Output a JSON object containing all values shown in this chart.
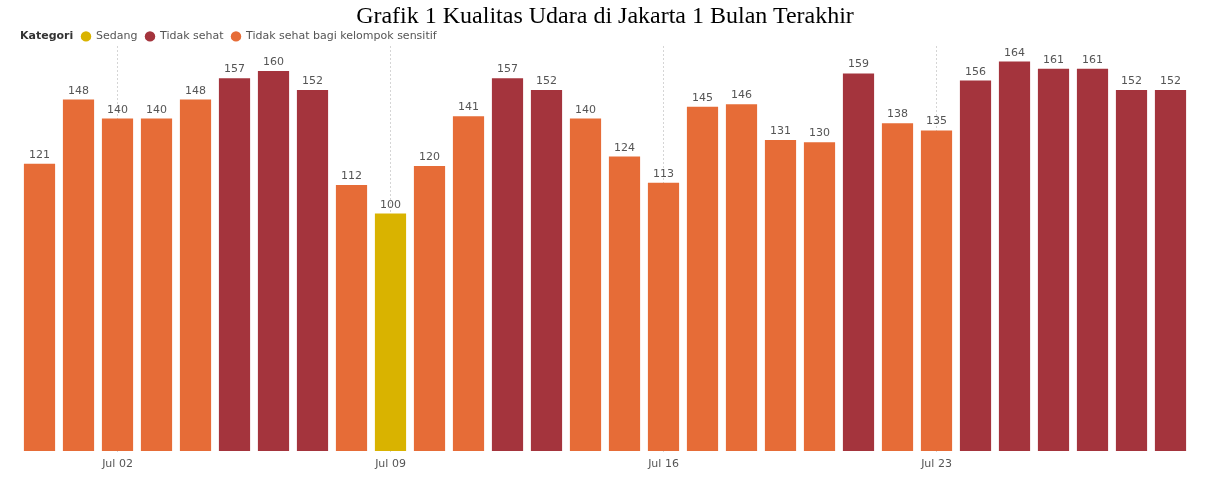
{
  "chart_data": {
    "type": "bar",
    "title": "Grafik 1 Kualitas Udara di Jakarta 1 Bulan Terakhir",
    "legend_title": "Kategori",
    "legend": "top left",
    "grid": "x",
    "data_labels": true,
    "tick_labels": "x",
    "categories": [
      null,
      null,
      "Jul 02",
      null,
      null,
      null,
      null,
      null,
      null,
      "Jul 09",
      null,
      null,
      null,
      null,
      null,
      null,
      "Jul 16",
      null,
      null,
      null,
      null,
      null,
      null,
      "Jul 23",
      null,
      null,
      null,
      null,
      null,
      null
    ],
    "series": [
      {
        "name": "Sedang",
        "color": "#d9b300",
        "values": [
          null,
          null,
          null,
          null,
          null,
          null,
          null,
          null,
          null,
          100,
          null,
          null,
          null,
          null,
          null,
          null,
          null,
          null,
          null,
          null,
          null,
          null,
          null,
          null,
          null,
          null,
          null,
          null,
          null,
          null
        ]
      },
      {
        "name": "Tidak sehat",
        "color": "#a4343d",
        "values": [
          null,
          null,
          null,
          null,
          null,
          157,
          160,
          152,
          null,
          null,
          null,
          null,
          157,
          152,
          null,
          null,
          null,
          null,
          null,
          null,
          null,
          159,
          null,
          null,
          156,
          164,
          161,
          161,
          152,
          152
        ]
      },
      {
        "name": "Tidak sehat bagi kelompok sensitif",
        "color": "#e66c37",
        "values": [
          121,
          148,
          140,
          140,
          148,
          null,
          null,
          null,
          112,
          null,
          120,
          141,
          null,
          null,
          140,
          124,
          113,
          145,
          146,
          131,
          130,
          null,
          138,
          135,
          null,
          null,
          null,
          null,
          null,
          null
        ]
      }
    ]
  }
}
